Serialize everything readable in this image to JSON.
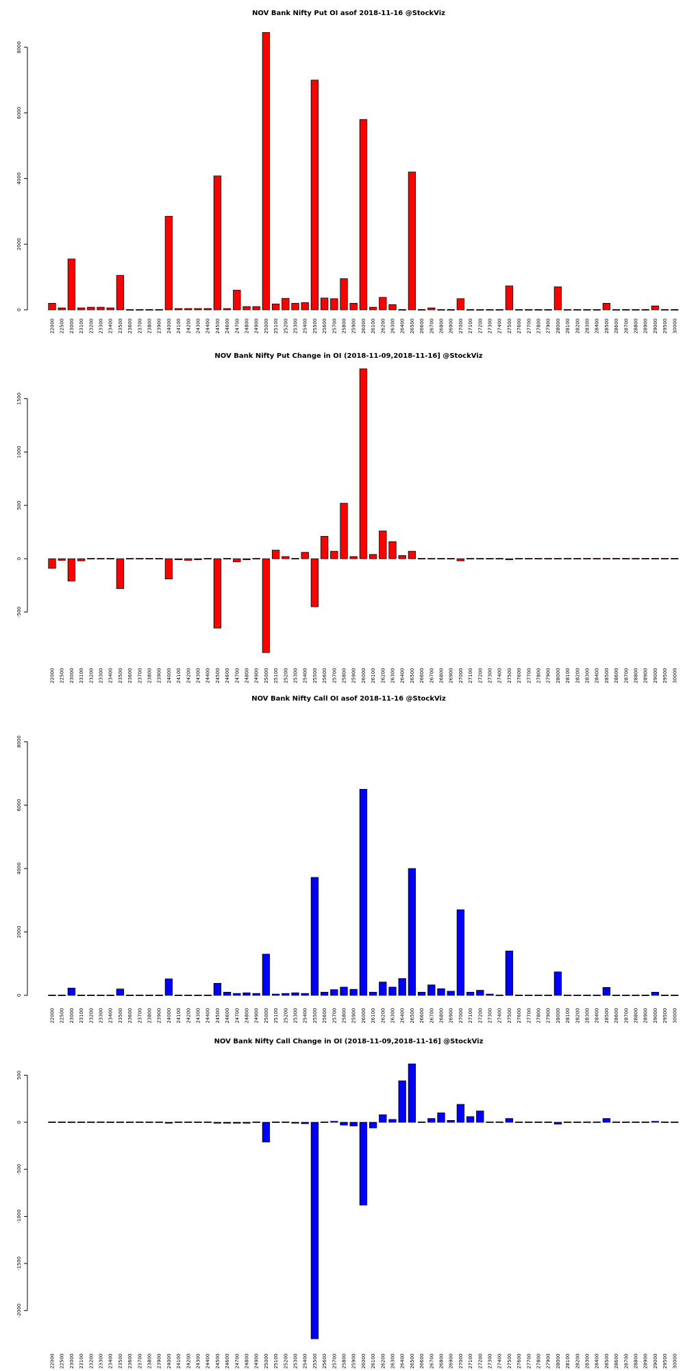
{
  "chart_data": [
    {
      "type": "bar",
      "title": "NOV Bank Nifty Put OI asof 2018-11-16 @StockViz",
      "xlabel": "",
      "ylabel": "",
      "ylim": [
        0,
        8500
      ],
      "yticks": [
        0,
        2000,
        4000,
        6000,
        8000
      ],
      "color": "#ff0000",
      "categories": [
        "22000",
        "22500",
        "23000",
        "23100",
        "23200",
        "23300",
        "23400",
        "23500",
        "23600",
        "23700",
        "23800",
        "23900",
        "24000",
        "24100",
        "24200",
        "24300",
        "24400",
        "24500",
        "24600",
        "24700",
        "24800",
        "24900",
        "25000",
        "25100",
        "25200",
        "25300",
        "25400",
        "25500",
        "25600",
        "25700",
        "25800",
        "25900",
        "26000",
        "26100",
        "26200",
        "26300",
        "26400",
        "26500",
        "26600",
        "26700",
        "26800",
        "26900",
        "27000",
        "27100",
        "27200",
        "27300",
        "27400",
        "27500",
        "27600",
        "27700",
        "27800",
        "27900",
        "28000",
        "28100",
        "28200",
        "28300",
        "28400",
        "28500",
        "28600",
        "28700",
        "28800",
        "28900",
        "29000",
        "29500",
        "30000"
      ],
      "values": [
        200,
        60,
        1550,
        60,
        80,
        80,
        60,
        1050,
        20,
        10,
        10,
        10,
        2850,
        40,
        40,
        40,
        40,
        4080,
        40,
        600,
        100,
        100,
        8450,
        180,
        350,
        200,
        220,
        7000,
        360,
        340,
        950,
        200,
        5800,
        80,
        380,
        160,
        10,
        4200,
        10,
        60,
        10,
        10,
        340,
        10,
        10,
        10,
        10,
        730,
        10,
        10,
        10,
        10,
        700,
        10,
        10,
        10,
        10,
        200,
        10,
        10,
        10,
        10,
        120,
        10,
        10
      ]
    },
    {
      "type": "bar",
      "title": "NOV Bank Nifty Put Change in OI (2018-11-09,2018-11-16] @StockViz",
      "xlabel": "",
      "ylabel": "",
      "ylim": [
        -880,
        1780
      ],
      "yticks": [
        -500,
        0,
        500,
        1000,
        1500
      ],
      "color": "#ff0000",
      "categories": [
        "22000",
        "22500",
        "23000",
        "23100",
        "23200",
        "23300",
        "23400",
        "23500",
        "23600",
        "23700",
        "23800",
        "23900",
        "24000",
        "24100",
        "24200",
        "24300",
        "24400",
        "24500",
        "24600",
        "24700",
        "24800",
        "24900",
        "25000",
        "25100",
        "25200",
        "25300",
        "25400",
        "25500",
        "25600",
        "25700",
        "25800",
        "25900",
        "26000",
        "26100",
        "26200",
        "26300",
        "26400",
        "26500",
        "26600",
        "26700",
        "26800",
        "26900",
        "27000",
        "27100",
        "27200",
        "27300",
        "27400",
        "27500",
        "27600",
        "27700",
        "27800",
        "27900",
        "28000",
        "28100",
        "28200",
        "28300",
        "28400",
        "28500",
        "28600",
        "28700",
        "28800",
        "28900",
        "29000",
        "29500",
        "30000"
      ],
      "values": [
        -90,
        -15,
        -210,
        -20,
        0,
        5,
        0,
        -280,
        0,
        0,
        0,
        0,
        -190,
        -10,
        -15,
        -10,
        0,
        -650,
        0,
        -30,
        -10,
        0,
        -880,
        80,
        20,
        0,
        60,
        -450,
        210,
        70,
        520,
        20,
        1780,
        40,
        260,
        160,
        30,
        70,
        0,
        0,
        0,
        0,
        -20,
        0,
        0,
        0,
        0,
        -10,
        0,
        0,
        0,
        0,
        5,
        0,
        0,
        0,
        0,
        0,
        0,
        0,
        0,
        0,
        5,
        0,
        0
      ]
    },
    {
      "type": "bar",
      "title": "NOV Bank Nifty Call OI asof 2018-11-16 @StockViz",
      "xlabel": "",
      "ylabel": "",
      "ylim": [
        0,
        8000
      ],
      "yticks": [
        0,
        2000,
        4000,
        6000,
        8000
      ],
      "color": "#0000ff",
      "categories": [
        "22000",
        "22500",
        "23000",
        "23100",
        "23200",
        "23300",
        "23400",
        "23500",
        "23600",
        "23700",
        "23800",
        "23900",
        "24000",
        "24100",
        "24200",
        "24300",
        "24400",
        "24500",
        "24600",
        "24700",
        "24800",
        "24900",
        "25000",
        "25100",
        "25200",
        "25300",
        "25400",
        "25500",
        "25600",
        "25700",
        "25800",
        "25900",
        "26000",
        "26100",
        "26200",
        "26300",
        "26400",
        "26500",
        "26600",
        "26700",
        "26800",
        "26900",
        "27000",
        "27100",
        "27200",
        "27300",
        "27400",
        "27500",
        "27600",
        "27700",
        "27800",
        "27900",
        "28000",
        "28100",
        "28200",
        "28300",
        "28400",
        "28500",
        "28600",
        "28700",
        "28800",
        "28900",
        "29000",
        "29500",
        "30000"
      ],
      "values": [
        10,
        5,
        230,
        5,
        5,
        5,
        5,
        200,
        5,
        5,
        5,
        5,
        520,
        5,
        5,
        5,
        5,
        380,
        100,
        60,
        80,
        60,
        1300,
        40,
        60,
        80,
        60,
        3720,
        100,
        180,
        260,
        190,
        6500,
        100,
        420,
        260,
        530,
        4000,
        100,
        330,
        210,
        130,
        2700,
        100,
        160,
        40,
        20,
        1400,
        10,
        10,
        10,
        10,
        740,
        10,
        10,
        10,
        10,
        250,
        10,
        10,
        10,
        10,
        100,
        10,
        10
      ]
    },
    {
      "type": "bar",
      "title": "NOV Bank Nifty Call Change in OI (2018-11-09,2018-11-16] @StockViz",
      "xlabel": "",
      "ylabel": "",
      "ylim": [
        -2300,
        620
      ],
      "yticks": [
        -2000,
        -1500,
        -1000,
        -500,
        0,
        500
      ],
      "color": "#0000ff",
      "categories": [
        "22000",
        "22500",
        "23000",
        "23100",
        "23200",
        "23300",
        "23400",
        "23500",
        "23600",
        "23700",
        "23800",
        "23900",
        "24000",
        "24100",
        "24200",
        "24300",
        "24400",
        "24500",
        "24600",
        "24700",
        "24800",
        "24900",
        "25000",
        "25100",
        "25200",
        "25300",
        "25400",
        "25500",
        "25600",
        "25700",
        "25800",
        "25900",
        "26000",
        "26100",
        "26200",
        "26300",
        "26400",
        "26500",
        "26600",
        "26700",
        "26800",
        "26900",
        "27000",
        "27100",
        "27200",
        "27300",
        "27400",
        "27500",
        "27600",
        "27700",
        "27800",
        "27900",
        "28000",
        "28100",
        "28200",
        "28300",
        "28400",
        "28500",
        "28600",
        "28700",
        "28800",
        "28900",
        "29000",
        "29500",
        "30000"
      ],
      "values": [
        0,
        0,
        0,
        0,
        0,
        0,
        0,
        0,
        0,
        0,
        0,
        0,
        -10,
        0,
        0,
        0,
        0,
        -10,
        -10,
        -10,
        -10,
        -5,
        -210,
        -5,
        0,
        -10,
        -15,
        -2300,
        -5,
        10,
        -30,
        -40,
        -880,
        -60,
        80,
        30,
        440,
        620,
        0,
        40,
        100,
        20,
        190,
        60,
        120,
        0,
        0,
        40,
        0,
        0,
        0,
        0,
        -20,
        0,
        0,
        0,
        0,
        40,
        0,
        0,
        0,
        0,
        10,
        0,
        0
      ]
    }
  ]
}
